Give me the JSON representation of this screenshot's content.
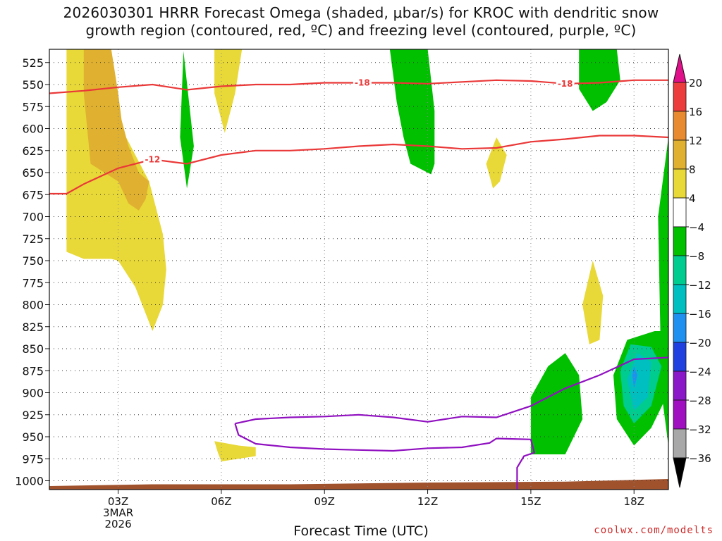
{
  "header": {
    "title_line1": "2026030301 HRRR Forecast Omega (shaded, μbar/s) for KROC with dendritic snow",
    "title_line2": "growth region (contoured, red, ºC) and freezing level (contoured, purple, ºC)"
  },
  "footer": {
    "xlabel": "Forecast Time (UTC)",
    "credit": "coolwx.com/modelts"
  },
  "chart_data": {
    "type": "contour",
    "title": "2026030301 HRRR Forecast Omega (shaded, μbar/s) for KROC with dendritic snow growth region (contoured, red, ºC) and freezing level (contoured, purple, ºC)",
    "xlabel": "Forecast Time (UTC)",
    "ylabel": "",
    "x_range_hours": [
      1,
      19
    ],
    "x_ticks": [
      {
        "hour": 3,
        "lines": [
          "03Z",
          "3MAR",
          "2026"
        ]
      },
      {
        "hour": 6,
        "lines": [
          "06Z"
        ]
      },
      {
        "hour": 9,
        "lines": [
          "09Z"
        ]
      },
      {
        "hour": 12,
        "lines": [
          "12Z"
        ]
      },
      {
        "hour": 15,
        "lines": [
          "15Z"
        ]
      },
      {
        "hour": 18,
        "lines": [
          "18Z"
        ]
      }
    ],
    "y_levels_hPa": [
      525,
      550,
      575,
      600,
      625,
      650,
      675,
      700,
      725,
      750,
      775,
      800,
      825,
      850,
      875,
      900,
      925,
      950,
      975,
      1000
    ],
    "y_range_hPa": [
      510,
      1010
    ],
    "grid": true,
    "colorbar": {
      "labels": [
        "20",
        "16",
        "12",
        "8",
        "4",
        "−4",
        "−8",
        "−12",
        "−16",
        "−20",
        "−24",
        "−28",
        "−32",
        "−36"
      ],
      "colors": [
        "#ec3c3c",
        "#e88a30",
        "#e0b030",
        "#e8d838",
        "#ffffff",
        "#00c000",
        "#00cc90",
        "#00bfc0",
        "#2090f0",
        "#2040e0",
        "#8a18c8",
        "#a010c0",
        "#a8a8a8"
      ],
      "top_arrow_color": "#e0108a",
      "bottom_arrow_color": "#000000"
    },
    "omega_regions": [
      {
        "level": "4 to 8",
        "color": "#e8d838",
        "points": [
          [
            1.5,
            510
          ],
          [
            2.6,
            510
          ],
          [
            2.8,
            560
          ],
          [
            3.1,
            600
          ],
          [
            3.5,
            630
          ],
          [
            3.9,
            660
          ],
          [
            4.3,
            720
          ],
          [
            4.4,
            760
          ],
          [
            4.3,
            800
          ],
          [
            4.0,
            830
          ],
          [
            3.5,
            780
          ],
          [
            3.0,
            750
          ],
          [
            2.8,
            748
          ],
          [
            2.0,
            748
          ],
          [
            1.5,
            740
          ],
          [
            1.5,
            650
          ],
          [
            1.5,
            600
          ],
          [
            1.5,
            520
          ]
        ]
      },
      {
        "level": "8 to 12",
        "color": "#e0b030",
        "points": [
          [
            2.0,
            510
          ],
          [
            2.8,
            510
          ],
          [
            3.0,
            560
          ],
          [
            3.1,
            590
          ],
          [
            3.3,
            620
          ],
          [
            3.6,
            650
          ],
          [
            3.9,
            660
          ],
          [
            3.8,
            680
          ],
          [
            3.6,
            693
          ],
          [
            3.3,
            685
          ],
          [
            3.0,
            660
          ],
          [
            2.2,
            640
          ],
          [
            2.1,
            600
          ],
          [
            2.0,
            560
          ]
        ]
      },
      {
        "level": "4 to 8",
        "color": "#e8d838",
        "points": [
          [
            5.8,
            510
          ],
          [
            6.6,
            510
          ],
          [
            6.4,
            560
          ],
          [
            6.1,
            605
          ],
          [
            5.8,
            560
          ]
        ]
      },
      {
        "level": "4 to 8",
        "color": "#e8d838",
        "points": [
          [
            5.8,
            955
          ],
          [
            6.5,
            960
          ],
          [
            7.0,
            962
          ],
          [
            7.0,
            972
          ],
          [
            6.0,
            978
          ],
          [
            5.9,
            968
          ]
        ]
      },
      {
        "level": "4 to 8",
        "color": "#e8d838",
        "points": [
          [
            14.0,
            610
          ],
          [
            14.3,
            630
          ],
          [
            14.1,
            660
          ],
          [
            13.9,
            668
          ],
          [
            13.7,
            640
          ]
        ]
      },
      {
        "level": "4 to 8",
        "color": "#e8d838",
        "points": [
          [
            16.8,
            750
          ],
          [
            17.1,
            790
          ],
          [
            17.0,
            840
          ],
          [
            16.7,
            845
          ],
          [
            16.5,
            800
          ]
        ]
      },
      {
        "level": "-4 to -8",
        "color": "#00c000",
        "points": [
          [
            4.9,
            512
          ],
          [
            5.2,
            620
          ],
          [
            5.0,
            668
          ],
          [
            4.8,
            610
          ]
        ]
      },
      {
        "level": "-4 to -8",
        "color": "#00c000",
        "points": [
          [
            10.9,
            510
          ],
          [
            12.0,
            510
          ],
          [
            12.2,
            580
          ],
          [
            12.2,
            640
          ],
          [
            12.1,
            652
          ],
          [
            11.5,
            640
          ],
          [
            11.3,
            610
          ],
          [
            11.1,
            570
          ]
        ]
      },
      {
        "level": "-4 to -8",
        "color": "#00c000",
        "points": [
          [
            16.4,
            510
          ],
          [
            17.5,
            510
          ],
          [
            17.6,
            545
          ],
          [
            17.2,
            570
          ],
          [
            16.8,
            580
          ],
          [
            16.4,
            555
          ]
        ]
      },
      {
        "level": "-4 to -8",
        "color": "#00c000",
        "points": [
          [
            19.0,
            610
          ],
          [
            19.0,
            960
          ],
          [
            18.8,
            900
          ],
          [
            18.7,
            700
          ]
        ]
      },
      {
        "level": "-4 to -8",
        "color": "#00c000",
        "points": [
          [
            15.0,
            905
          ],
          [
            15.5,
            870
          ],
          [
            16.0,
            855
          ],
          [
            16.4,
            880
          ],
          [
            16.5,
            930
          ],
          [
            16.0,
            970
          ],
          [
            15.0,
            970
          ]
        ]
      },
      {
        "level": "-4 to -8",
        "color": "#00c000",
        "points": [
          [
            17.4,
            880
          ],
          [
            17.8,
            840
          ],
          [
            18.6,
            830
          ],
          [
            19.0,
            830
          ],
          [
            19.0,
            900
          ],
          [
            18.5,
            940
          ],
          [
            18.0,
            960
          ],
          [
            17.5,
            930
          ]
        ]
      },
      {
        "level": "-8 to -12",
        "color": "#00cc90",
        "points": [
          [
            17.6,
            875
          ],
          [
            17.9,
            845
          ],
          [
            18.5,
            848
          ],
          [
            18.8,
            870
          ],
          [
            18.5,
            915
          ],
          [
            18.0,
            935
          ],
          [
            17.7,
            915
          ]
        ]
      },
      {
        "level": "-12 to -16",
        "color": "#00bfc0",
        "points": [
          [
            17.8,
            885
          ],
          [
            18.1,
            855
          ],
          [
            18.5,
            865
          ],
          [
            18.4,
            905
          ],
          [
            18.0,
            920
          ]
        ]
      },
      {
        "level": "-16 to -20",
        "color": "#2090f0",
        "points": [
          [
            17.95,
            880
          ],
          [
            18.0,
            870
          ],
          [
            18.1,
            880
          ],
          [
            18.0,
            895
          ]
        ]
      }
    ],
    "dgz_contours": [
      {
        "value": -18,
        "label": "-18",
        "color": "#ea3838",
        "points": [
          [
            1,
            560
          ],
          [
            2,
            557
          ],
          [
            3,
            553
          ],
          [
            4,
            550
          ],
          [
            5,
            556
          ],
          [
            6,
            552
          ],
          [
            7,
            550
          ],
          [
            8,
            550
          ],
          [
            9,
            548
          ],
          [
            10,
            548
          ],
          [
            11,
            548
          ],
          [
            12,
            549
          ],
          [
            13,
            547
          ],
          [
            14,
            545
          ],
          [
            15,
            546
          ],
          [
            16,
            549
          ],
          [
            17,
            548
          ],
          [
            18,
            545
          ],
          [
            19,
            545
          ]
        ]
      },
      {
        "value": -12,
        "label": "-12",
        "color": "#ea3838",
        "points": [
          [
            1,
            674
          ],
          [
            1.5,
            674
          ],
          [
            2,
            663
          ],
          [
            3,
            645
          ],
          [
            4,
            635
          ],
          [
            5,
            640
          ],
          [
            6,
            630
          ],
          [
            7,
            625
          ],
          [
            8,
            625
          ],
          [
            9,
            623
          ],
          [
            10,
            620
          ],
          [
            11,
            618
          ],
          [
            12,
            620
          ],
          [
            13,
            623
          ],
          [
            14,
            622
          ],
          [
            15,
            615
          ],
          [
            16,
            612
          ],
          [
            17,
            608
          ],
          [
            18,
            608
          ],
          [
            19,
            610
          ]
        ]
      }
    ],
    "freezing_level_contours": [
      {
        "value": 0,
        "color": "#9010c0",
        "points": [
          [
            6.4,
            935
          ],
          [
            7,
            930
          ],
          [
            8,
            928
          ],
          [
            9,
            927
          ],
          [
            10,
            925
          ],
          [
            11,
            928
          ],
          [
            12,
            933
          ],
          [
            13,
            927
          ],
          [
            14,
            928
          ],
          [
            15,
            915
          ],
          [
            16,
            895
          ],
          [
            17,
            880
          ],
          [
            18,
            862
          ],
          [
            19,
            860
          ]
        ]
      },
      {
        "value": 0,
        "color": "#9010c0",
        "points": [
          [
            6.4,
            935
          ],
          [
            6.5,
            948
          ],
          [
            7,
            958
          ],
          [
            8,
            962
          ],
          [
            9,
            964
          ],
          [
            10,
            965
          ],
          [
            11,
            966
          ],
          [
            12,
            963
          ],
          [
            13,
            962
          ],
          [
            13.8,
            957
          ],
          [
            14,
            952
          ],
          [
            15,
            953
          ],
          [
            15.1,
            968
          ],
          [
            14.8,
            972
          ],
          [
            14.6,
            985
          ],
          [
            14.6,
            1010
          ]
        ]
      }
    ],
    "terrain": {
      "color": "#a0522d",
      "points": [
        [
          1,
          1010
        ],
        [
          1,
          1006
        ],
        [
          4,
          1004
        ],
        [
          8,
          1004
        ],
        [
          12,
          1002
        ],
        [
          16,
          1001
        ],
        [
          19,
          998
        ],
        [
          19,
          1010
        ]
      ]
    }
  }
}
